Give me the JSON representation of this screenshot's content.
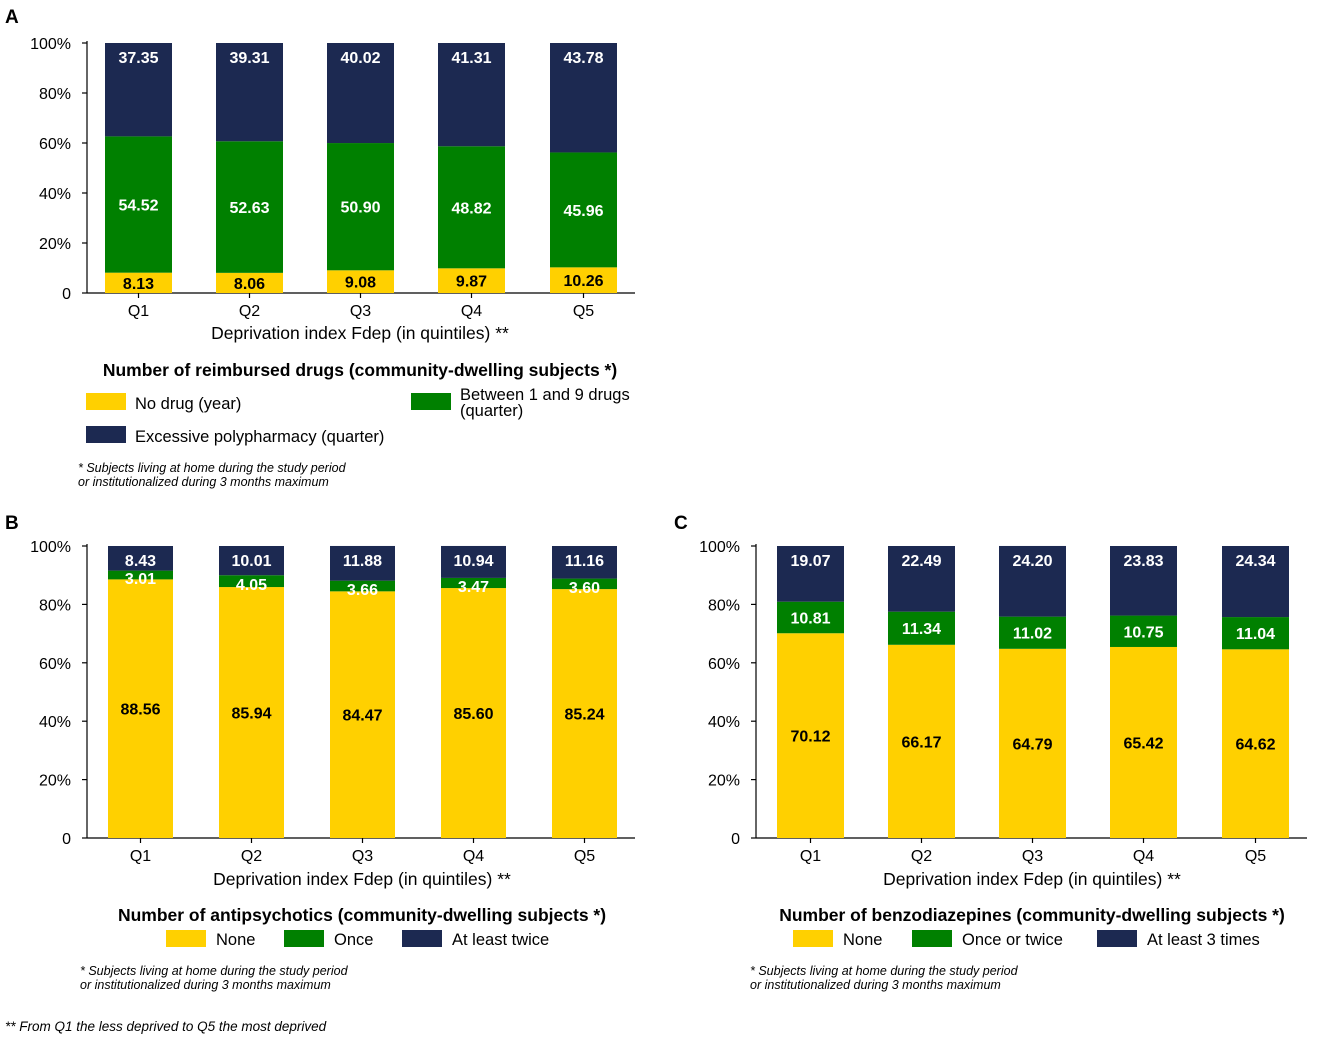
{
  "colors": {
    "yellow": "#FFD000",
    "green": "#008000",
    "navy": "#1C2951",
    "axis": "#000000",
    "text_on_dark": "#FFFFFF",
    "text_on_light": "#000000"
  },
  "footnote_global": "** From Q1 the less deprived to Q5 the most deprived",
  "chart_data": [
    {
      "panel": "A",
      "type": "bar",
      "stacked": true,
      "title": "",
      "xlabel": "Deprivation index Fdep (in quintiles) **",
      "ylabel": "",
      "ylim": [
        0,
        100
      ],
      "yticks": [
        "0",
        "20%",
        "40%",
        "60%",
        "80%",
        "100%"
      ],
      "categories": [
        "Q1",
        "Q2",
        "Q3",
        "Q4",
        "Q5"
      ],
      "series": [
        {
          "name": "No drug (year)",
          "values": [
            8.13,
            8.06,
            9.08,
            9.87,
            10.26
          ],
          "labels": [
            "8.13",
            "8.06",
            "9.08",
            "9.87",
            "10.26"
          ],
          "color": "#FFD000"
        },
        {
          "name": "Between 1 and 9 drugs (quarter)",
          "values": [
            54.52,
            52.63,
            50.9,
            48.82,
            45.96
          ],
          "labels": [
            "54.52",
            "52.63",
            "50.90",
            "48.82",
            "45.96"
          ],
          "color": "#008000"
        },
        {
          "name": "Excessive polypharmacy (quarter)",
          "values": [
            37.35,
            39.31,
            40.02,
            41.31,
            43.78
          ],
          "labels": [
            "37.35",
            "39.31",
            "40.02",
            "41.31",
            "43.78"
          ],
          "color": "#1C2951"
        }
      ],
      "legend_title": "Number of reimbursed drugs (community-dwelling subjects *)",
      "legend": [
        {
          "lines": [
            "No drug (year)"
          ]
        },
        {
          "lines": [
            "Between 1 and 9 drugs",
            "(quarter)"
          ]
        },
        {
          "lines": [
            "Excessive polypharmacy (quarter)"
          ]
        }
      ],
      "note": [
        "* Subjects living at home during the study period",
        "or institutionalized during 3 months maximum"
      ]
    },
    {
      "panel": "B",
      "type": "bar",
      "stacked": true,
      "title": "",
      "xlabel": "Deprivation index Fdep (in quintiles) **",
      "ylabel": "",
      "ylim": [
        0,
        100
      ],
      "yticks": [
        "0",
        "20%",
        "40%",
        "60%",
        "80%",
        "100%"
      ],
      "categories": [
        "Q1",
        "Q2",
        "Q3",
        "Q4",
        "Q5"
      ],
      "series": [
        {
          "name": "None",
          "values": [
            88.56,
            85.94,
            84.47,
            85.6,
            85.24
          ],
          "labels": [
            "88.56",
            "85.94",
            "84.47",
            "85.60",
            "85.24"
          ],
          "color": "#FFD000"
        },
        {
          "name": "Once",
          "values": [
            3.01,
            4.05,
            3.66,
            3.47,
            3.6
          ],
          "labels": [
            "3.01",
            "4.05",
            "3.66",
            "3.47",
            "3.60"
          ],
          "color": "#008000"
        },
        {
          "name": "At least twice",
          "values": [
            8.43,
            10.01,
            11.88,
            10.94,
            11.16
          ],
          "labels": [
            "8.43",
            "10.01",
            "11.88",
            "10.94",
            "11.16"
          ],
          "color": "#1C2951"
        }
      ],
      "legend_title": "Number of antipsychotics (community-dwelling subjects *)",
      "legend": [
        {
          "lines": [
            "None"
          ]
        },
        {
          "lines": [
            "Once"
          ]
        },
        {
          "lines": [
            "At least twice"
          ]
        }
      ],
      "note": [
        "* Subjects living at home during the study period",
        "or institutionalized during 3 months maximum"
      ]
    },
    {
      "panel": "C",
      "type": "bar",
      "stacked": true,
      "title": "",
      "xlabel": "Deprivation index Fdep (in quintiles) **",
      "ylabel": "",
      "ylim": [
        0,
        100
      ],
      "yticks": [
        "0",
        "20%",
        "40%",
        "60%",
        "80%",
        "100%"
      ],
      "categories": [
        "Q1",
        "Q2",
        "Q3",
        "Q4",
        "Q5"
      ],
      "series": [
        {
          "name": "None",
          "values": [
            70.12,
            66.17,
            64.79,
            65.42,
            64.62
          ],
          "labels": [
            "70.12",
            "66.17",
            "64.79",
            "65.42",
            "64.62"
          ],
          "color": "#FFD000"
        },
        {
          "name": "Once or twice",
          "values": [
            10.81,
            11.34,
            11.02,
            10.75,
            11.04
          ],
          "labels": [
            "10.81",
            "11.34",
            "11.02",
            "10.75",
            "11.04"
          ],
          "color": "#008000"
        },
        {
          "name": "At least 3 times",
          "values": [
            19.07,
            22.49,
            24.2,
            23.83,
            24.34
          ],
          "labels": [
            "19.07",
            "22.49",
            "24.20",
            "23.83",
            "24.34"
          ],
          "color": "#1C2951"
        }
      ],
      "legend_title": "Number of benzodiazepines (community-dwelling subjects *)",
      "legend": [
        {
          "lines": [
            "None"
          ]
        },
        {
          "lines": [
            "Once or twice"
          ]
        },
        {
          "lines": [
            "At least 3 times"
          ]
        }
      ],
      "note": [
        "* Subjects living at home during the study period",
        "or institutionalized during 3 months maximum"
      ]
    }
  ]
}
